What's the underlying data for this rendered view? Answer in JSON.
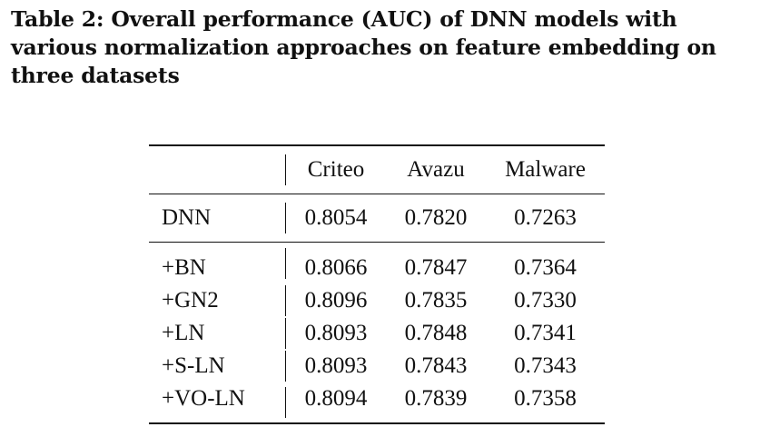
{
  "caption": "Table 2: Overall performance (AUC) of DNN models with various normalization approaches on feature embedding on three datasets",
  "table": {
    "columns": [
      "Criteo",
      "Avazu",
      "Malware"
    ],
    "baseline": {
      "label": "DNN",
      "values": [
        "0.8054",
        "0.7820",
        "0.7263"
      ]
    },
    "rows": [
      {
        "label": "+BN",
        "values": [
          "0.8066",
          "0.7847",
          "0.7364"
        ]
      },
      {
        "label": "+GN2",
        "values": [
          "0.8096",
          "0.7835",
          "0.7330"
        ]
      },
      {
        "label": "+LN",
        "values": [
          "0.8093",
          "0.7848",
          "0.7341"
        ]
      },
      {
        "label": "+S-LN",
        "values": [
          "0.8093",
          "0.7843",
          "0.7343"
        ]
      },
      {
        "label": "+VO-LN",
        "values": [
          "0.8094",
          "0.7839",
          "0.7358"
        ]
      }
    ]
  }
}
